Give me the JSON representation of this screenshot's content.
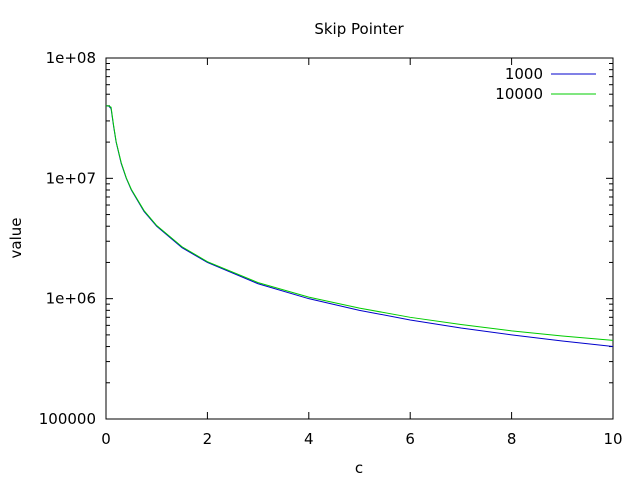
{
  "chart_data": {
    "type": "line",
    "title": "Skip Pointer",
    "xlabel": "c",
    "ylabel": "value",
    "xlim": [
      0,
      10
    ],
    "ylim": [
      100000,
      100000000
    ],
    "y_scale": "log",
    "grid": false,
    "legend_position": "top-right",
    "x_ticks": [
      0,
      2,
      4,
      6,
      8,
      10
    ],
    "x_tick_labels": [
      "0",
      "2",
      "4",
      "6",
      "8",
      "10"
    ],
    "y_ticks": [
      100000,
      1000000,
      10000000,
      100000000
    ],
    "y_tick_labels": [
      "100000",
      "1e+06",
      "1e+07",
      "1e+08"
    ],
    "series": [
      {
        "name": "1000",
        "color": "#0000cc",
        "x": [
          0,
          0.05,
          0.1,
          0.15,
          0.2,
          0.3,
          0.4,
          0.5,
          0.75,
          1,
          1.5,
          2,
          3,
          4,
          5,
          6,
          7,
          8,
          9,
          10
        ],
        "y": [
          40000000,
          40000000,
          38000000,
          27000000,
          20000000,
          13300000,
          10000000,
          8000000,
          5300000,
          4000000,
          2650000,
          2000000,
          1330000,
          1000000,
          800000,
          665000,
          570000,
          500000,
          445000,
          400000
        ]
      },
      {
        "name": "10000",
        "color": "#00cc00",
        "x": [
          0,
          0.05,
          0.1,
          0.15,
          0.2,
          0.3,
          0.4,
          0.5,
          0.75,
          1,
          1.5,
          2,
          3,
          4,
          5,
          6,
          7,
          8,
          9,
          10
        ],
        "y": [
          40000000,
          40000000,
          39000000,
          27500000,
          20200000,
          13500000,
          10100000,
          8100000,
          5400000,
          4050000,
          2700000,
          2030000,
          1360000,
          1030000,
          835000,
          700000,
          610000,
          540000,
          490000,
          450000
        ]
      }
    ]
  }
}
